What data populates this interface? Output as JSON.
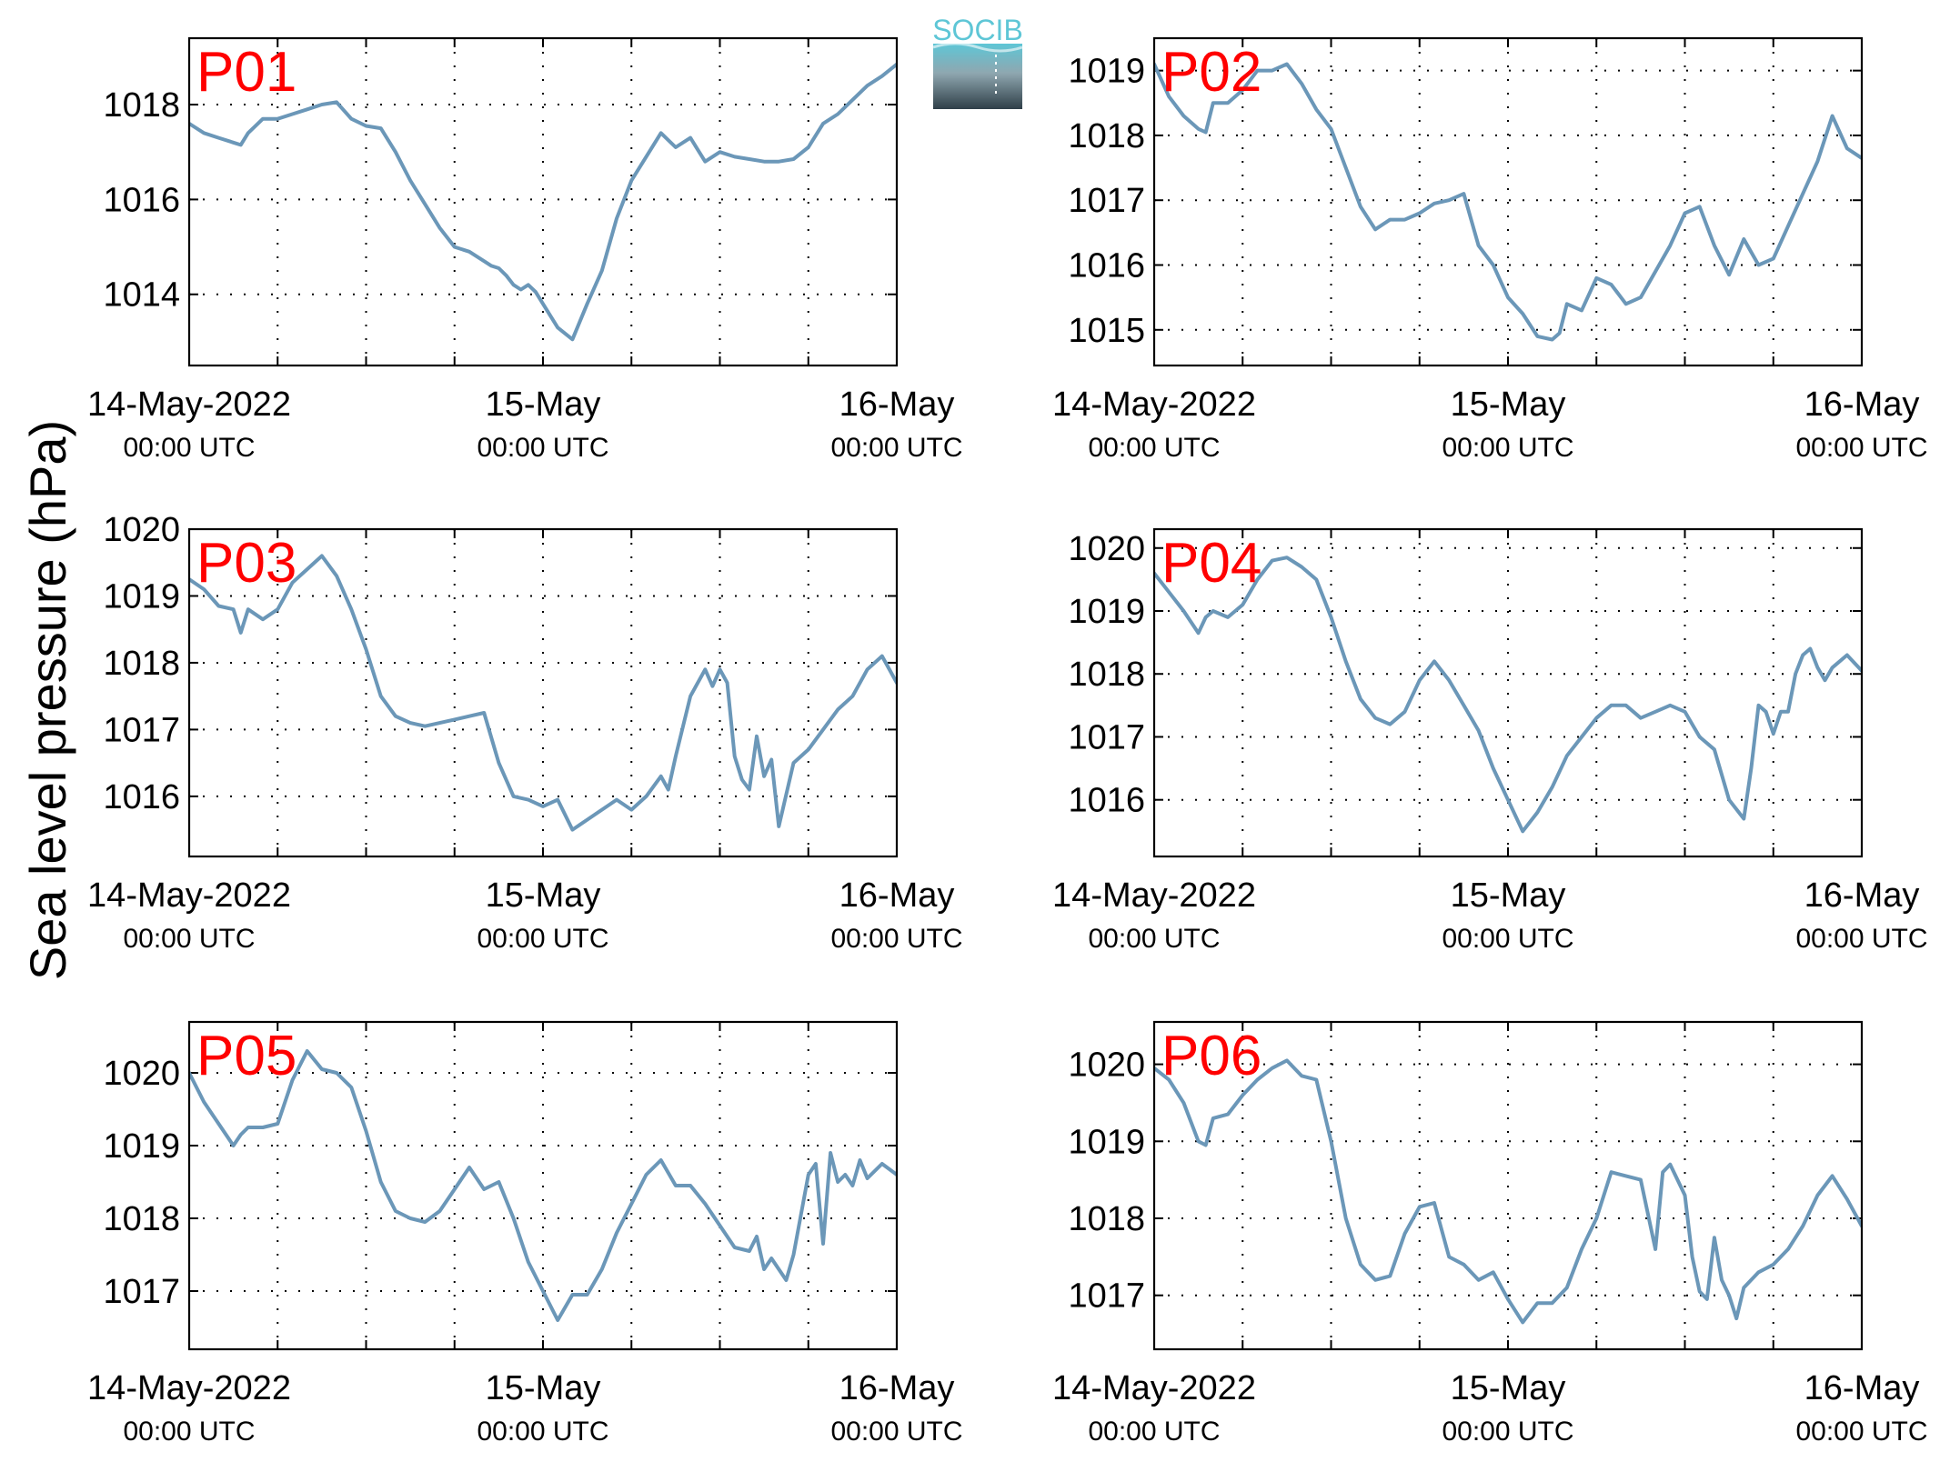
{
  "figure": {
    "ylabel": "Sea level pressure (hPa)",
    "logo_text": "SOCIB",
    "x_tick_labels": [
      {
        "main": "14-May-2022",
        "sub": "00:00 UTC"
      },
      {
        "main": "15-May",
        "sub": "00:00 UTC"
      },
      {
        "main": "16-May",
        "sub": "00:00 UTC"
      }
    ]
  },
  "colors": {
    "series": "#6b97b8",
    "panel_label": "#ff0000",
    "logo_top": "#5ec6d6",
    "logo_bottom": "#2f3f48"
  },
  "chart_data": [
    {
      "type": "line",
      "title": "P01",
      "x_unit": "hours since 14-May-2022 00:00 UTC",
      "xlim": [
        0,
        48
      ],
      "ylim": [
        1012.5,
        1019.4
      ],
      "yticks": [
        1014,
        1016,
        1018
      ],
      "grid": true,
      "x": [
        0,
        1,
        2,
        3,
        3.5,
        4,
        5,
        6,
        7,
        8,
        9,
        10,
        11,
        12,
        13,
        14,
        15,
        16,
        17,
        18,
        19,
        20,
        20.5,
        21,
        21.5,
        22,
        22.5,
        23,
        23.5,
        24,
        25,
        26,
        27,
        28,
        29,
        30,
        31,
        32,
        33,
        34,
        35,
        36,
        37,
        38,
        39,
        40,
        41,
        42,
        43,
        44,
        45,
        46,
        47,
        48
      ],
      "values": [
        1017.6,
        1017.4,
        1017.3,
        1017.2,
        1017.15,
        1017.4,
        1017.7,
        1017.7,
        1017.8,
        1017.9,
        1018.0,
        1018.05,
        1017.7,
        1017.55,
        1017.5,
        1017.0,
        1016.4,
        1015.9,
        1015.4,
        1015.0,
        1014.9,
        1014.7,
        1014.6,
        1014.55,
        1014.4,
        1014.2,
        1014.1,
        1014.2,
        1014.05,
        1013.8,
        1013.3,
        1013.05,
        1013.8,
        1014.5,
        1015.6,
        1016.4,
        1016.9,
        1017.4,
        1017.1,
        1017.3,
        1016.8,
        1017.0,
        1016.9,
        1016.85,
        1016.8,
        1016.8,
        1016.85,
        1017.1,
        1017.6,
        1017.8,
        1018.1,
        1018.4,
        1018.6,
        1018.85
      ]
    },
    {
      "type": "line",
      "title": "P02",
      "x_unit": "hours since 14-May-2022 00:00 UTC",
      "xlim": [
        0,
        48
      ],
      "ylim": [
        1014.45,
        1019.5
      ],
      "yticks": [
        1015,
        1016,
        1017,
        1018,
        1019
      ],
      "grid": true,
      "x": [
        0,
        1,
        2,
        3,
        3.5,
        4,
        5,
        6,
        7,
        8,
        9,
        10,
        11,
        12,
        13,
        14,
        15,
        16,
        17,
        18,
        19,
        20,
        21,
        22,
        23,
        24,
        25,
        26,
        27,
        27.5,
        28,
        29,
        30,
        31,
        32,
        33,
        34,
        35,
        36,
        36.5,
        37,
        37.5,
        38,
        39,
        40,
        41,
        42,
        43,
        44,
        45,
        46,
        47,
        48
      ],
      "values": [
        1019.1,
        1018.6,
        1018.3,
        1018.1,
        1018.05,
        1018.5,
        1018.5,
        1018.7,
        1019.0,
        1019.0,
        1019.1,
        1018.8,
        1018.4,
        1018.1,
        1017.5,
        1016.9,
        1016.55,
        1016.7,
        1016.7,
        1016.8,
        1016.95,
        1017.0,
        1017.1,
        1016.3,
        1016.0,
        1015.5,
        1015.25,
        1014.9,
        1014.85,
        1014.95,
        1015.4,
        1015.3,
        1015.8,
        1015.7,
        1015.4,
        1015.5,
        1015.9,
        1016.3,
        1016.8,
        1016.85,
        1016.9,
        1016.6,
        1016.3,
        1015.85,
        1016.4,
        1016.0,
        1016.1,
        1016.6,
        1017.1,
        1017.6,
        1018.3,
        1017.8,
        1017.65
      ]
    },
    {
      "type": "line",
      "title": "P03",
      "x_unit": "hours since 14-May-2022 00:00 UTC",
      "xlim": [
        0,
        48
      ],
      "ylim": [
        1015.1,
        1020.0
      ],
      "yticks": [
        1016,
        1017,
        1018,
        1019,
        1020
      ],
      "grid": true,
      "x": [
        0,
        1,
        2,
        3,
        3.5,
        4,
        5,
        6,
        7,
        8,
        9,
        10,
        11,
        12,
        13,
        14,
        15,
        16,
        17,
        18,
        19,
        20,
        21,
        22,
        23,
        24,
        25,
        26,
        27,
        28,
        29,
        30,
        31,
        32,
        32.5,
        33,
        34,
        35,
        35.5,
        36,
        36.5,
        37,
        37.5,
        38,
        38.5,
        39,
        39.5,
        40,
        41,
        42,
        43,
        44,
        45,
        46,
        47,
        48
      ],
      "values": [
        1019.25,
        1019.1,
        1018.85,
        1018.8,
        1018.45,
        1018.8,
        1018.65,
        1018.8,
        1019.2,
        1019.4,
        1019.6,
        1019.3,
        1018.8,
        1018.2,
        1017.5,
        1017.2,
        1017.1,
        1017.05,
        1017.1,
        1017.15,
        1017.2,
        1017.25,
        1016.5,
        1016.0,
        1015.95,
        1015.85,
        1015.95,
        1015.5,
        1015.65,
        1015.8,
        1015.95,
        1015.8,
        1016.0,
        1016.3,
        1016.1,
        1016.6,
        1017.5,
        1017.9,
        1017.65,
        1017.9,
        1017.7,
        1016.6,
        1016.25,
        1016.1,
        1016.9,
        1016.3,
        1016.55,
        1015.55,
        1016.5,
        1016.7,
        1017.0,
        1017.3,
        1017.5,
        1017.9,
        1018.1,
        1017.7
      ]
    },
    {
      "type": "line",
      "title": "P04",
      "x_unit": "hours since 14-May-2022 00:00 UTC",
      "xlim": [
        0,
        48
      ],
      "ylim": [
        1015.1,
        1020.3
      ],
      "yticks": [
        1016,
        1017,
        1018,
        1019,
        1020
      ],
      "grid": true,
      "x": [
        0,
        1,
        2,
        3,
        3.5,
        4,
        5,
        6,
        7,
        8,
        9,
        10,
        11,
        12,
        13,
        14,
        15,
        16,
        17,
        18,
        19,
        20,
        21,
        22,
        23,
        24,
        25,
        26,
        27,
        28,
        29,
        30,
        31,
        32,
        33,
        34,
        35,
        36,
        37,
        38,
        39,
        40,
        40.5,
        41,
        41.5,
        42,
        42.5,
        43,
        43.5,
        44,
        44.5,
        45,
        45.5,
        46,
        47,
        48
      ],
      "values": [
        1019.6,
        1019.3,
        1019.0,
        1018.65,
        1018.9,
        1019.0,
        1018.9,
        1019.1,
        1019.5,
        1019.8,
        1019.85,
        1019.7,
        1019.5,
        1018.9,
        1018.2,
        1017.6,
        1017.3,
        1017.2,
        1017.4,
        1017.9,
        1018.2,
        1017.9,
        1017.5,
        1017.1,
        1016.5,
        1016.0,
        1015.5,
        1015.8,
        1016.2,
        1016.7,
        1017.0,
        1017.3,
        1017.5,
        1017.5,
        1017.3,
        1017.4,
        1017.5,
        1017.4,
        1017.0,
        1016.8,
        1016.0,
        1015.7,
        1016.5,
        1017.5,
        1017.4,
        1017.05,
        1017.4,
        1017.4,
        1018.0,
        1018.3,
        1018.4,
        1018.1,
        1017.9,
        1018.1,
        1018.3,
        1018.05
      ]
    },
    {
      "type": "line",
      "title": "P05",
      "x_unit": "hours since 14-May-2022 00:00 UTC",
      "xlim": [
        0,
        48
      ],
      "ylim": [
        1016.2,
        1020.7
      ],
      "yticks": [
        1017,
        1018,
        1019,
        1020
      ],
      "grid": true,
      "x": [
        0,
        1,
        2,
        3,
        3.5,
        4,
        5,
        6,
        7,
        8,
        9,
        10,
        11,
        12,
        13,
        14,
        15,
        16,
        17,
        18,
        19,
        20,
        21,
        22,
        23,
        24,
        25,
        26,
        27,
        28,
        29,
        30,
        31,
        32,
        33,
        34,
        35,
        36,
        37,
        38,
        38.5,
        39,
        39.5,
        40,
        40.5,
        41,
        42,
        42.5,
        43,
        43.5,
        44,
        44.5,
        45,
        45.5,
        46,
        47,
        48
      ],
      "values": [
        1020.0,
        1019.6,
        1019.3,
        1019.0,
        1019.15,
        1019.25,
        1019.25,
        1019.3,
        1019.9,
        1020.3,
        1020.05,
        1020.0,
        1019.8,
        1019.2,
        1018.5,
        1018.1,
        1018.0,
        1017.95,
        1018.1,
        1018.4,
        1018.7,
        1018.4,
        1018.5,
        1018.0,
        1017.4,
        1017.0,
        1016.6,
        1016.95,
        1016.95,
        1017.3,
        1017.8,
        1018.2,
        1018.6,
        1018.8,
        1018.45,
        1018.45,
        1018.2,
        1017.9,
        1017.6,
        1017.55,
        1017.75,
        1017.3,
        1017.45,
        1017.3,
        1017.15,
        1017.5,
        1018.6,
        1018.75,
        1017.65,
        1018.9,
        1018.5,
        1018.6,
        1018.45,
        1018.8,
        1018.55,
        1018.75,
        1018.6
      ]
    },
    {
      "type": "line",
      "title": "P06",
      "x_unit": "hours since 14-May-2022 00:00 UTC",
      "xlim": [
        0,
        48
      ],
      "ylim": [
        1016.3,
        1020.55
      ],
      "yticks": [
        1017,
        1018,
        1019,
        1020
      ],
      "grid": true,
      "x": [
        0,
        1,
        2,
        3,
        3.5,
        4,
        5,
        6,
        7,
        8,
        9,
        10,
        11,
        12,
        13,
        14,
        15,
        16,
        17,
        18,
        19,
        20,
        21,
        22,
        23,
        24,
        25,
        26,
        27,
        28,
        29,
        30,
        31,
        32,
        33,
        34,
        34.5,
        35,
        35.5,
        36,
        36.5,
        37,
        37.5,
        38,
        38.5,
        39,
        39.5,
        40,
        41,
        42,
        43,
        44,
        45,
        46,
        47,
        48
      ],
      "values": [
        1019.95,
        1019.8,
        1019.5,
        1019.0,
        1018.95,
        1019.3,
        1019.35,
        1019.6,
        1019.8,
        1019.95,
        1020.05,
        1019.85,
        1019.8,
        1019.0,
        1018.0,
        1017.4,
        1017.2,
        1017.25,
        1017.8,
        1018.15,
        1018.2,
        1017.5,
        1017.4,
        1017.2,
        1017.3,
        1016.95,
        1016.65,
        1016.9,
        1016.9,
        1017.1,
        1017.6,
        1018.0,
        1018.6,
        1018.55,
        1018.5,
        1017.6,
        1018.6,
        1018.7,
        1018.5,
        1018.3,
        1017.5,
        1017.05,
        1016.95,
        1017.75,
        1017.2,
        1017.0,
        1016.7,
        1017.1,
        1017.3,
        1017.4,
        1017.6,
        1017.9,
        1018.3,
        1018.55,
        1018.25,
        1017.9
      ]
    }
  ]
}
